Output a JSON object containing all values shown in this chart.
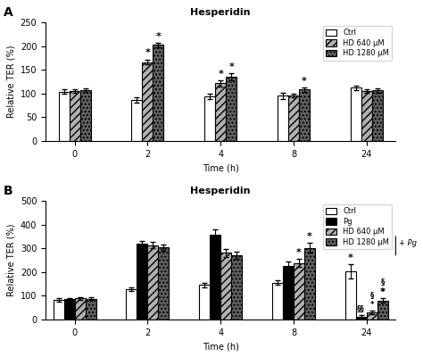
{
  "panel_A": {
    "title": "Hesperidin",
    "xlabel": "Time (h)",
    "ylabel": "Relative TER (%)",
    "ylim": [
      0,
      250
    ],
    "yticks": [
      0,
      50,
      100,
      150,
      200,
      250
    ],
    "timepoints": [
      0,
      2,
      4,
      8,
      24
    ],
    "series": {
      "Ctrl": {
        "values": [
          104,
          86,
          94,
          95,
          112
        ],
        "errors": [
          4,
          5,
          6,
          7,
          5
        ],
        "color": "white",
        "hatch": ""
      },
      "HD 640 μM": {
        "values": [
          105,
          166,
          121,
          96,
          105
        ],
        "errors": [
          3,
          5,
          6,
          4,
          4
        ],
        "color": "#b0b0b0",
        "hatch": "////"
      },
      "HD 1280 μM": {
        "values": [
          107,
          202,
          135,
          108,
          106
        ],
        "errors": [
          3,
          4,
          7,
          4,
          4
        ],
        "color": "#606060",
        "hatch": "...."
      }
    },
    "stars": {
      "2": [
        "HD 640 μM",
        "HD 1280 μM"
      ],
      "4": [
        "HD 640 μM",
        "HD 1280 μM"
      ],
      "8": [
        "HD 1280 μM"
      ],
      "24": []
    },
    "label": "A"
  },
  "panel_B": {
    "title": "Hesperidin",
    "xlabel": "Time (h)",
    "ylabel": "Relative TER (%)",
    "ylim": [
      0,
      500
    ],
    "yticks": [
      0,
      100,
      200,
      300,
      400,
      500
    ],
    "timepoints": [
      0,
      2,
      4,
      8,
      24
    ],
    "series": {
      "Ctrl": {
        "values": [
          82,
          128,
          145,
          155,
          202
        ],
        "errors": [
          6,
          8,
          10,
          10,
          30
        ],
        "color": "white",
        "hatch": ""
      },
      "Pg": {
        "values": [
          84,
          318,
          358,
          225,
          12
        ],
        "errors": [
          5,
          12,
          20,
          18,
          5
        ],
        "color": "black",
        "hatch": ""
      },
      "HD 640 μM": {
        "values": [
          88,
          313,
          280,
          238,
          28
        ],
        "errors": [
          5,
          14,
          18,
          16,
          8
        ],
        "color": "#b0b0b0",
        "hatch": "////"
      },
      "HD 1280 μM": {
        "values": [
          87,
          303,
          270,
          302,
          80
        ],
        "errors": [
          5,
          13,
          15,
          20,
          10
        ],
        "color": "#606060",
        "hatch": "...."
      }
    },
    "stars_asterisk": {
      "8": [
        "HD 640 μM",
        "HD 1280 μM"
      ],
      "24": [
        "Ctrl",
        "HD 1280 μM"
      ]
    },
    "stars_section": {
      "24": [
        "Pg",
        "HD 640 μM",
        "HD 1280 μM"
      ]
    },
    "label": "B",
    "legend_note": "+ Pg"
  }
}
